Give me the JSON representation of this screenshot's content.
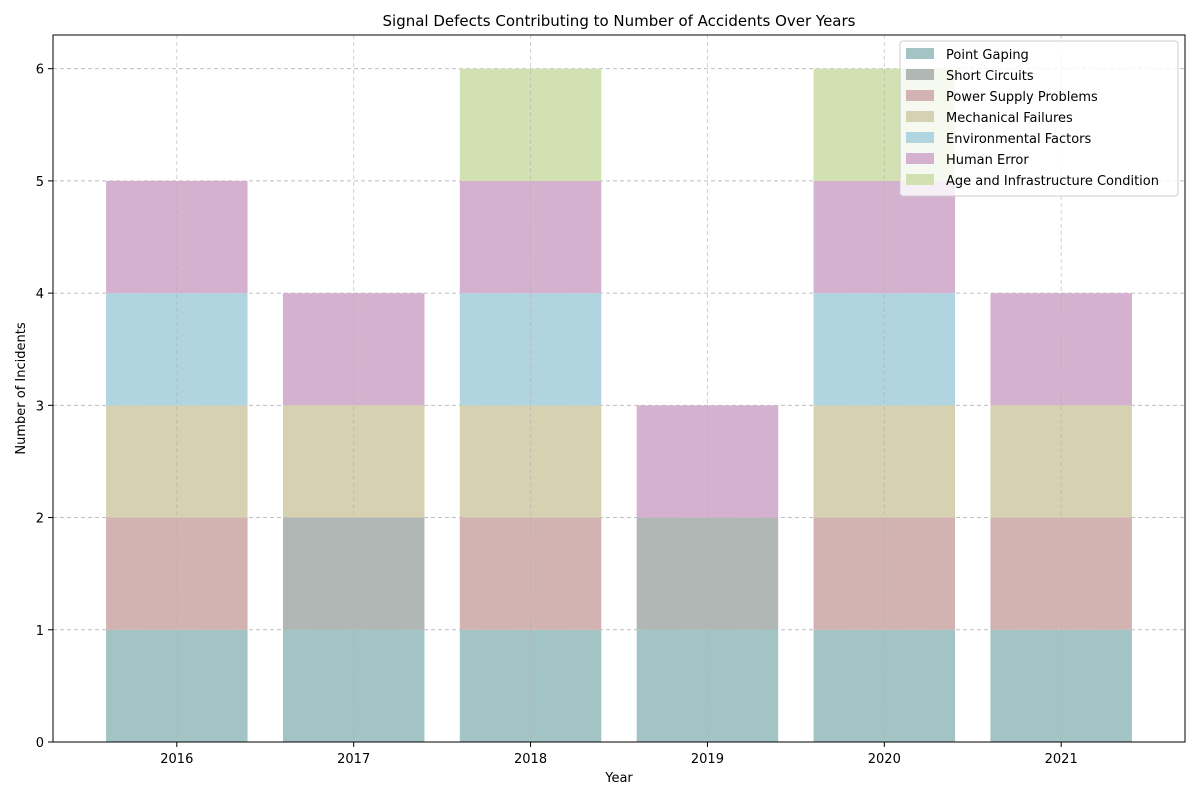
{
  "chart_data": {
    "type": "bar",
    "stacked": true,
    "title": "Signal Defects Contributing to Number of Accidents Over Years",
    "xlabel": "Year",
    "ylabel": "Number of Incidents",
    "categories": [
      "2016",
      "2017",
      "2018",
      "2019",
      "2020",
      "2021"
    ],
    "ylim": [
      0,
      6.3
    ],
    "yticks": [
      0,
      1,
      2,
      3,
      4,
      5,
      6
    ],
    "grid": true,
    "legend_position": "top-right",
    "series": [
      {
        "name": "Point Gaping",
        "color": "#a3c4c4",
        "values": [
          1,
          1,
          1,
          1,
          1,
          1
        ]
      },
      {
        "name": "Short Circuits",
        "color": "#b1b7b4",
        "values": [
          0,
          1,
          0,
          1,
          0,
          0
        ]
      },
      {
        "name": "Power Supply Problems",
        "color": "#d2b3b2",
        "values": [
          1,
          0,
          1,
          0,
          1,
          1
        ]
      },
      {
        "name": "Mechanical Failures",
        "color": "#d6d1b1",
        "values": [
          1,
          1,
          1,
          0,
          1,
          1
        ]
      },
      {
        "name": "Environmental Factors",
        "color": "#b0d5e0",
        "values": [
          1,
          0,
          1,
          0,
          1,
          0
        ]
      },
      {
        "name": "Human Error",
        "color": "#d5b1d0",
        "values": [
          1,
          1,
          1,
          1,
          1,
          1
        ]
      },
      {
        "name": "Age and Infrastructure Condition",
        "color": "#d2e1b2",
        "values": [
          0,
          0,
          1,
          0,
          1,
          0
        ]
      }
    ]
  }
}
